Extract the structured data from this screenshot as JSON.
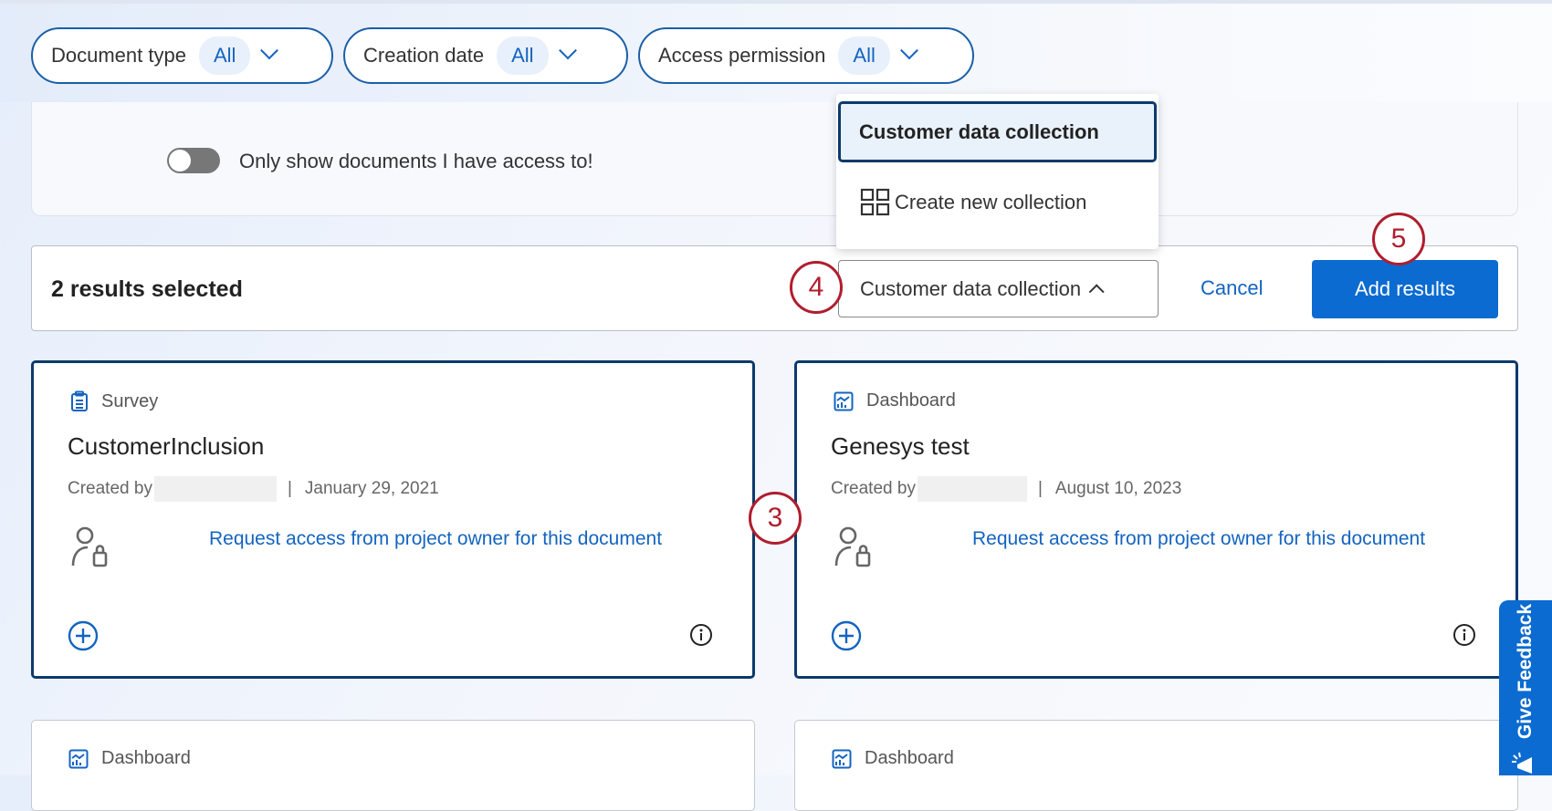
{
  "filters": [
    {
      "label": "Document type",
      "value": "All"
    },
    {
      "label": "Creation date",
      "value": "All"
    },
    {
      "label": "Access permission",
      "value": "All"
    }
  ],
  "panel": {
    "toggle_label": "Only show documents I have access to!",
    "toggle_on": false
  },
  "selection": {
    "count_label": "2 results selected",
    "collection_value": "Customer data collection",
    "cancel_label": "Cancel",
    "add_label": "Add results"
  },
  "menu": {
    "items": [
      {
        "label": "Customer data collection",
        "selected": true
      },
      {
        "label": "Create new collection",
        "icon": "grid-icon"
      }
    ]
  },
  "steps": [
    "3",
    "4",
    "5"
  ],
  "cards": [
    {
      "type": "Survey",
      "icon": "clipboard-icon",
      "title": "CustomerInclusion",
      "created_by": "Created by",
      "date": "January 29, 2021",
      "request": "Request access from project owner for this document"
    },
    {
      "type": "Dashboard",
      "icon": "dashboard-icon",
      "title": "Genesys test",
      "created_by": "Created by",
      "date": "August 10, 2023",
      "request": "Request access from project owner for this document"
    },
    {
      "type": "Dashboard",
      "icon": "dashboard-icon"
    },
    {
      "type": "Dashboard",
      "icon": "dashboard-icon"
    }
  ],
  "separator": "|",
  "feedback": {
    "label": "Give Feedback"
  },
  "colors": {
    "accent": "#0b6bd0",
    "card_border": "#0c3a6b",
    "step": "#b01d2e"
  }
}
